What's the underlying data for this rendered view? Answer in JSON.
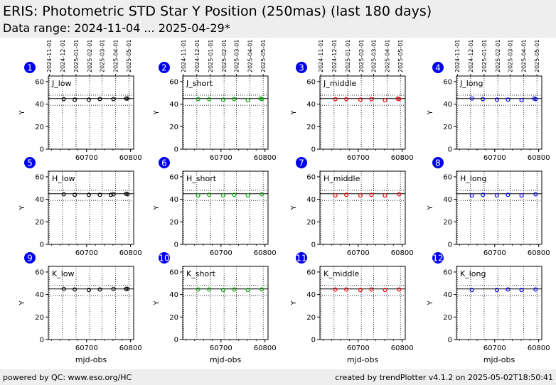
{
  "header": {
    "title": "ERIS: Photometric STD Star Y Position (250mas) (last 180 days)",
    "subtitle": "Data range: 2024-11-04 ... 2025-04-29*"
  },
  "footer": {
    "left": "powered by QC: www.eso.org/HC",
    "right": "created by trendPlotter v4.1.2 on 2025-05-02T18:50:41"
  },
  "colors": {
    "badge": "#0000ee",
    "black": "#000000",
    "green": "#00aa00",
    "red": "#ee0000",
    "blue": "#0000ee"
  },
  "shared": {
    "date_ticks": [
      "2024-11-01",
      "2024-12-01",
      "2025-01-01",
      "2025-02-01",
      "2025-03-01",
      "2025-04-01",
      "2025-05-01"
    ],
    "date_ticks_mjd": [
      60615,
      60645,
      60676,
      60707,
      60735,
      60766,
      60796
    ],
    "x_ticks": [
      60700,
      60800
    ],
    "y_ticks": [
      0,
      20,
      40,
      60
    ],
    "xlim": [
      60613,
      60807
    ],
    "ylim": [
      0,
      65
    ],
    "ylabel": "Y",
    "xlabel": "mjd-obs",
    "ref_line": 45,
    "ref_band": [
      39,
      48
    ]
  },
  "chart_data": [
    {
      "type": "scatter",
      "panel": "1",
      "name": "J_low",
      "color": "black",
      "x": [
        60648,
        60673,
        60705,
        60730,
        60761,
        60790,
        60793
      ],
      "y": [
        44.5,
        44,
        44,
        44.5,
        44.5,
        45,
        45
      ]
    },
    {
      "type": "scatter",
      "panel": "2",
      "name": "J_short",
      "color": "green",
      "x": [
        60648,
        60673,
        60705,
        60730,
        60761,
        60790,
        60793
      ],
      "y": [
        44.5,
        44.5,
        44,
        44.5,
        43.5,
        45,
        44.5
      ]
    },
    {
      "type": "scatter",
      "panel": "3",
      "name": "J_middle",
      "color": "red",
      "x": [
        60648,
        60673,
        60705,
        60730,
        60761,
        60790,
        60793
      ],
      "y": [
        44.5,
        44.5,
        44,
        44.5,
        43.5,
        45,
        44.5
      ]
    },
    {
      "type": "scatter",
      "panel": "4",
      "name": "J_long",
      "color": "blue",
      "x": [
        60648,
        60673,
        60705,
        60730,
        60761,
        60790,
        60793
      ],
      "y": [
        45,
        44.5,
        44,
        44,
        43.5,
        45,
        44.5
      ]
    },
    {
      "type": "scatter",
      "panel": "5",
      "name": "H_low",
      "color": "black",
      "x": [
        60648,
        60673,
        60705,
        60730,
        60755,
        60761,
        60790,
        60793
      ],
      "y": [
        44.5,
        44,
        44,
        44,
        44,
        44.5,
        45,
        44.5
      ]
    },
    {
      "type": "scatter",
      "panel": "6",
      "name": "H_short",
      "color": "green",
      "x": [
        60648,
        60673,
        60705,
        60730,
        60761,
        60793
      ],
      "y": [
        43.5,
        44,
        43.5,
        44,
        43.5,
        44.5
      ]
    },
    {
      "type": "scatter",
      "panel": "7",
      "name": "H_middle",
      "color": "red",
      "x": [
        60648,
        60673,
        60705,
        60730,
        60761,
        60793
      ],
      "y": [
        43.5,
        44,
        43.5,
        44,
        43.5,
        44.5
      ]
    },
    {
      "type": "scatter",
      "panel": "8",
      "name": "H_long",
      "color": "blue",
      "x": [
        60648,
        60673,
        60705,
        60730,
        60761,
        60793
      ],
      "y": [
        43.5,
        44,
        43.5,
        44,
        43.5,
        44.5
      ]
    },
    {
      "type": "scatter",
      "panel": "9",
      "name": "K_low",
      "color": "black",
      "x": [
        60648,
        60673,
        60705,
        60730,
        60761,
        60790,
        60793
      ],
      "y": [
        45,
        44.5,
        44,
        44.5,
        45,
        45,
        45
      ]
    },
    {
      "type": "scatter",
      "panel": "10",
      "name": "K_short",
      "color": "green",
      "x": [
        60648,
        60673,
        60705,
        60730,
        60761,
        60793
      ],
      "y": [
        44.5,
        44.5,
        44,
        44.5,
        44,
        44.5
      ]
    },
    {
      "type": "scatter",
      "panel": "11",
      "name": "K_middle",
      "color": "red",
      "x": [
        60648,
        60673,
        60705,
        60730,
        60761,
        60793
      ],
      "y": [
        44.5,
        44.5,
        44,
        44.5,
        44,
        44.5
      ]
    },
    {
      "type": "scatter",
      "panel": "12",
      "name": "K_long",
      "color": "blue",
      "x": [
        60648,
        60705,
        60730,
        60761,
        60793
      ],
      "y": [
        44,
        44,
        44.5,
        44,
        44.5
      ]
    }
  ]
}
